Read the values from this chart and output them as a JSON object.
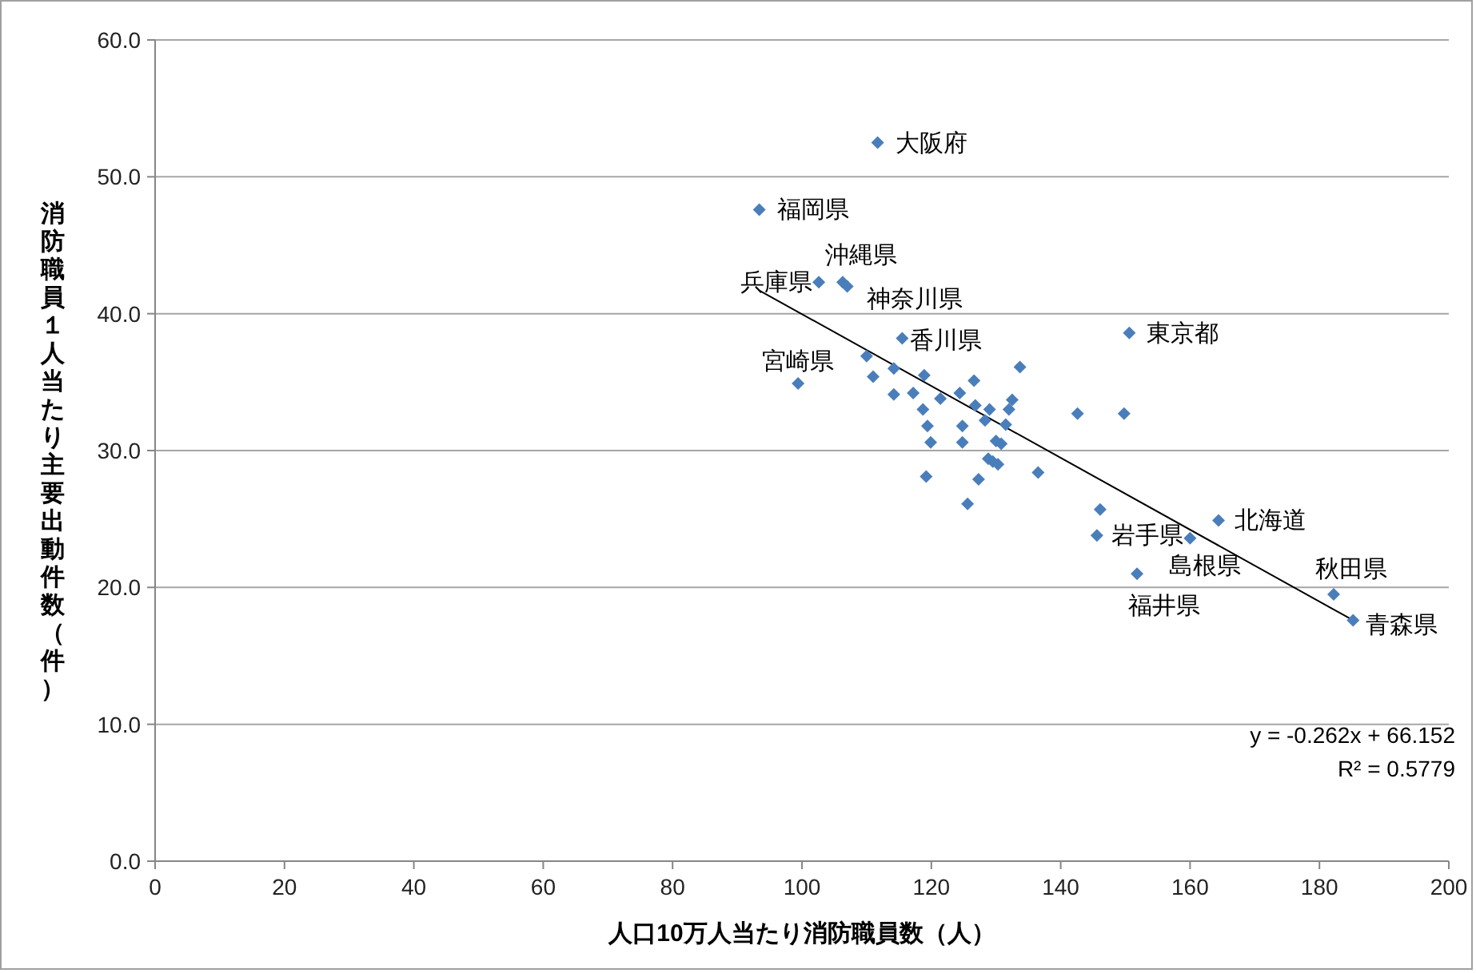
{
  "chart_data": {
    "type": "scatter",
    "xlabel": "人口10万人当たり消防職員数（人）",
    "ylabel": "消防職員１人当たり主要出動件数（件）",
    "xlim": [
      0,
      200
    ],
    "xticks": [
      0,
      20,
      40,
      60,
      80,
      100,
      120,
      140,
      160,
      180,
      200
    ],
    "ylim": [
      0,
      60
    ],
    "yticks": [
      {
        "value": 0,
        "label": "0.0"
      },
      {
        "value": 10,
        "label": "10.0"
      },
      {
        "value": 20,
        "label": "20.0"
      },
      {
        "value": 30,
        "label": "30.0"
      },
      {
        "value": 40,
        "label": "40.0"
      },
      {
        "value": 50,
        "label": "50.0"
      },
      {
        "value": 60,
        "label": "60.0"
      }
    ],
    "grid": "y",
    "series": [
      {
        "marker": "diamond",
        "color": "#4a7ebb",
        "x": [
          111.7,
          93.4,
          102.6,
          106.3,
          107.0,
          115.5,
          99.4,
          150.6,
          145.6,
          164.4,
          160.0,
          151.8,
          182.2,
          185.2,
          142.6,
          149.8,
          146.1,
          136.5,
          133.7,
          110.0,
          111.0,
          114.2,
          118.9,
          114.2,
          117.2,
          121.4,
          124.4,
          126.6,
          118.7,
          126.8,
          129.0,
          132.5,
          132.0,
          128.3,
          131.5,
          119.4,
          124.8,
          119.9,
          124.8,
          130.0,
          130.8,
          128.8,
          129.5,
          130.3,
          119.2,
          127.3,
          125.6
        ],
        "values": [
          52.5,
          47.6,
          42.3,
          42.3,
          42.0,
          38.2,
          34.9,
          38.6,
          23.8,
          24.9,
          23.6,
          21.0,
          19.5,
          17.6,
          32.7,
          32.7,
          25.7,
          28.4,
          36.1,
          36.9,
          35.4,
          36.0,
          35.5,
          34.1,
          34.2,
          33.8,
          34.2,
          35.1,
          33.0,
          33.3,
          33.0,
          33.7,
          33.0,
          32.2,
          31.9,
          31.8,
          31.8,
          30.6,
          30.6,
          30.7,
          30.5,
          29.4,
          29.2,
          29.0,
          28.1,
          27.9,
          26.1
        ]
      },
      {
        "type": "line",
        "marker": "none",
        "color": "#000000",
        "x": [
          93.4,
          185.2
        ],
        "values": [
          41.7,
          17.6
        ]
      }
    ],
    "annotations": [
      {
        "text": "大阪府",
        "x": 111.7,
        "y": 52.5
      },
      {
        "text": "福岡県",
        "x": 93.4,
        "y": 47.6
      },
      {
        "text": "兵庫県",
        "x": 102.6,
        "y": 42.3
      },
      {
        "text": "沖縄県",
        "x": 106.3,
        "y": 42.3
      },
      {
        "text": "神奈川県",
        "x": 107.0,
        "y": 42.0
      },
      {
        "text": "香川県",
        "x": 115.5,
        "y": 38.2
      },
      {
        "text": "宮崎県",
        "x": 99.4,
        "y": 34.9
      },
      {
        "text": "東京都",
        "x": 150.6,
        "y": 38.6
      },
      {
        "text": "岩手県",
        "x": 145.6,
        "y": 23.8
      },
      {
        "text": "北海道",
        "x": 164.4,
        "y": 24.9
      },
      {
        "text": "島根県",
        "x": 160.0,
        "y": 23.6
      },
      {
        "text": "福井県",
        "x": 151.8,
        "y": 21.0
      },
      {
        "text": "秋田県",
        "x": 182.2,
        "y": 19.5
      },
      {
        "text": "青森県",
        "x": 185.2,
        "y": 17.6
      },
      "y = -0.262x + 66.152",
      "R² = 0.5779"
    ]
  }
}
